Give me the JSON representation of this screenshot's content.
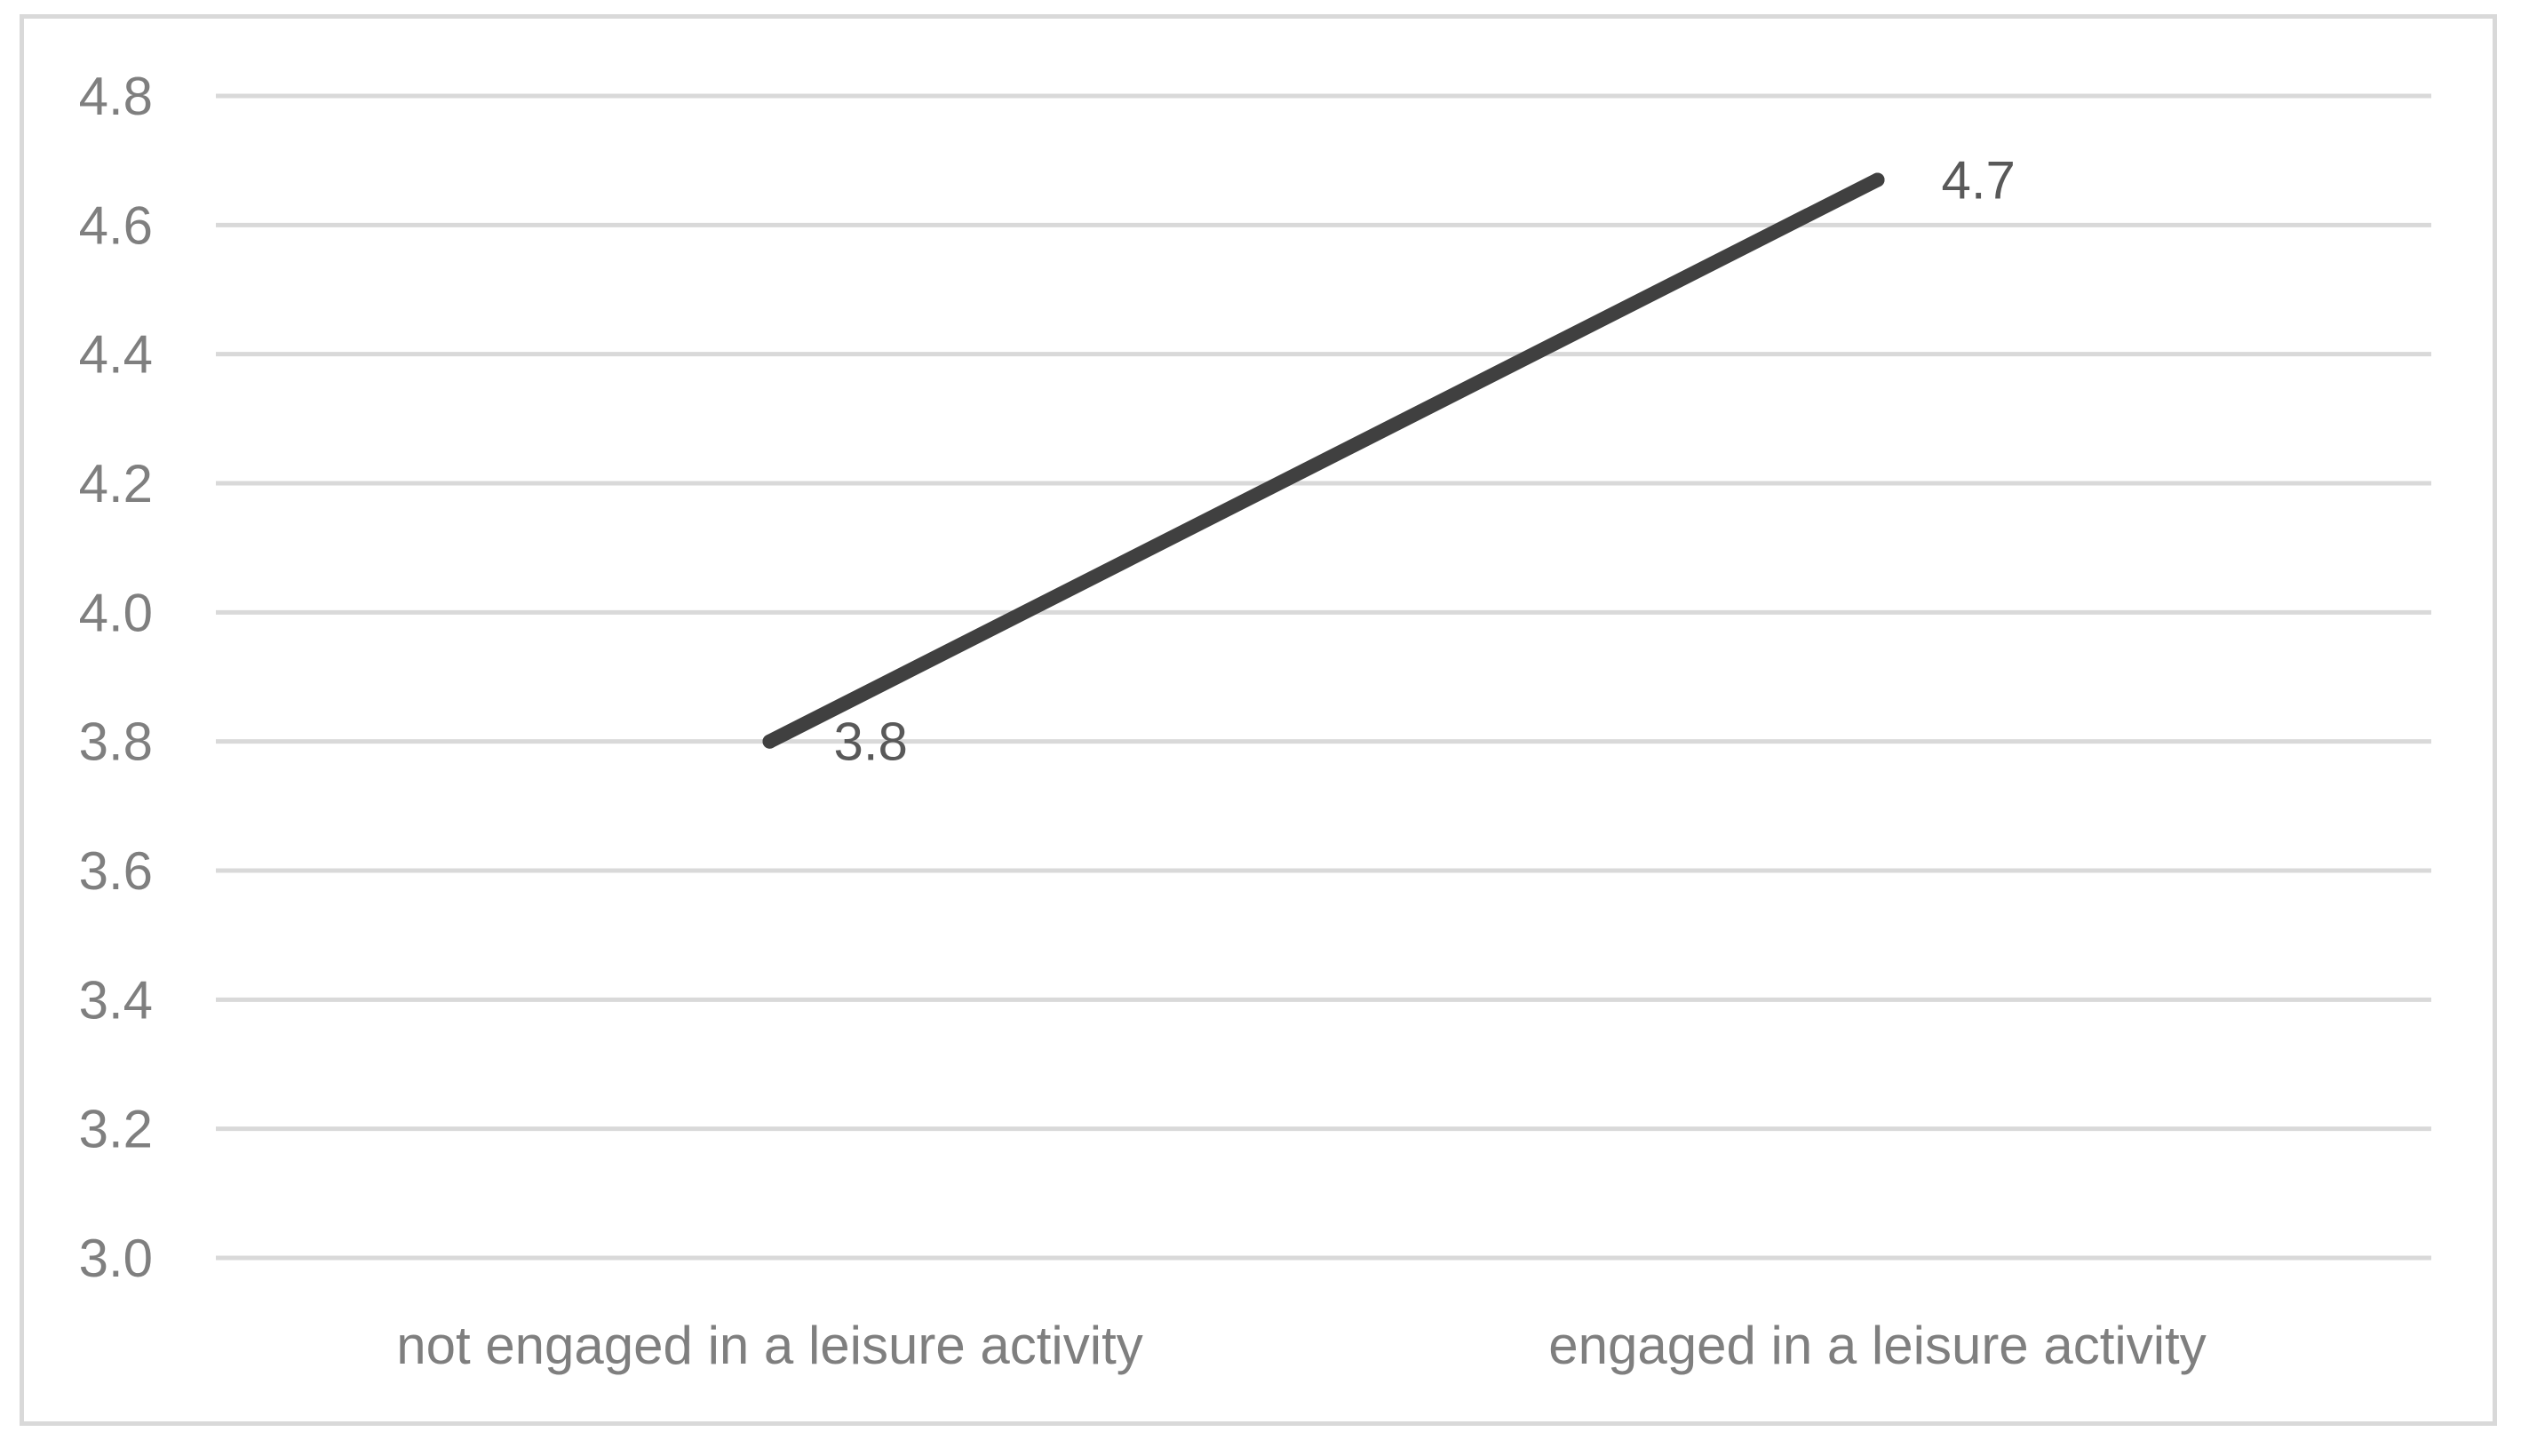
{
  "chart_data": {
    "type": "line",
    "title": "",
    "xlabel": "",
    "ylabel": "",
    "categories": [
      "not engaged in a leisure activity",
      "engaged in a leisure activity"
    ],
    "series": [
      {
        "values": [
          3.8,
          4.67
        ],
        "data_labels": [
          "3.8",
          "4.7"
        ],
        "color": "#404040"
      }
    ],
    "ylim": [
      3.0,
      4.8
    ],
    "yticks": [
      "3.0",
      "3.2",
      "3.4",
      "3.6",
      "3.8",
      "4.0",
      "4.2",
      "4.4",
      "4.6",
      "4.8"
    ],
    "grid": true,
    "legend": "none",
    "colors": {
      "gridline": "#d9d9d9",
      "tick_text": "#7f7f7f",
      "data_label_text": "#595959",
      "frame": "#d9d9d9"
    }
  }
}
